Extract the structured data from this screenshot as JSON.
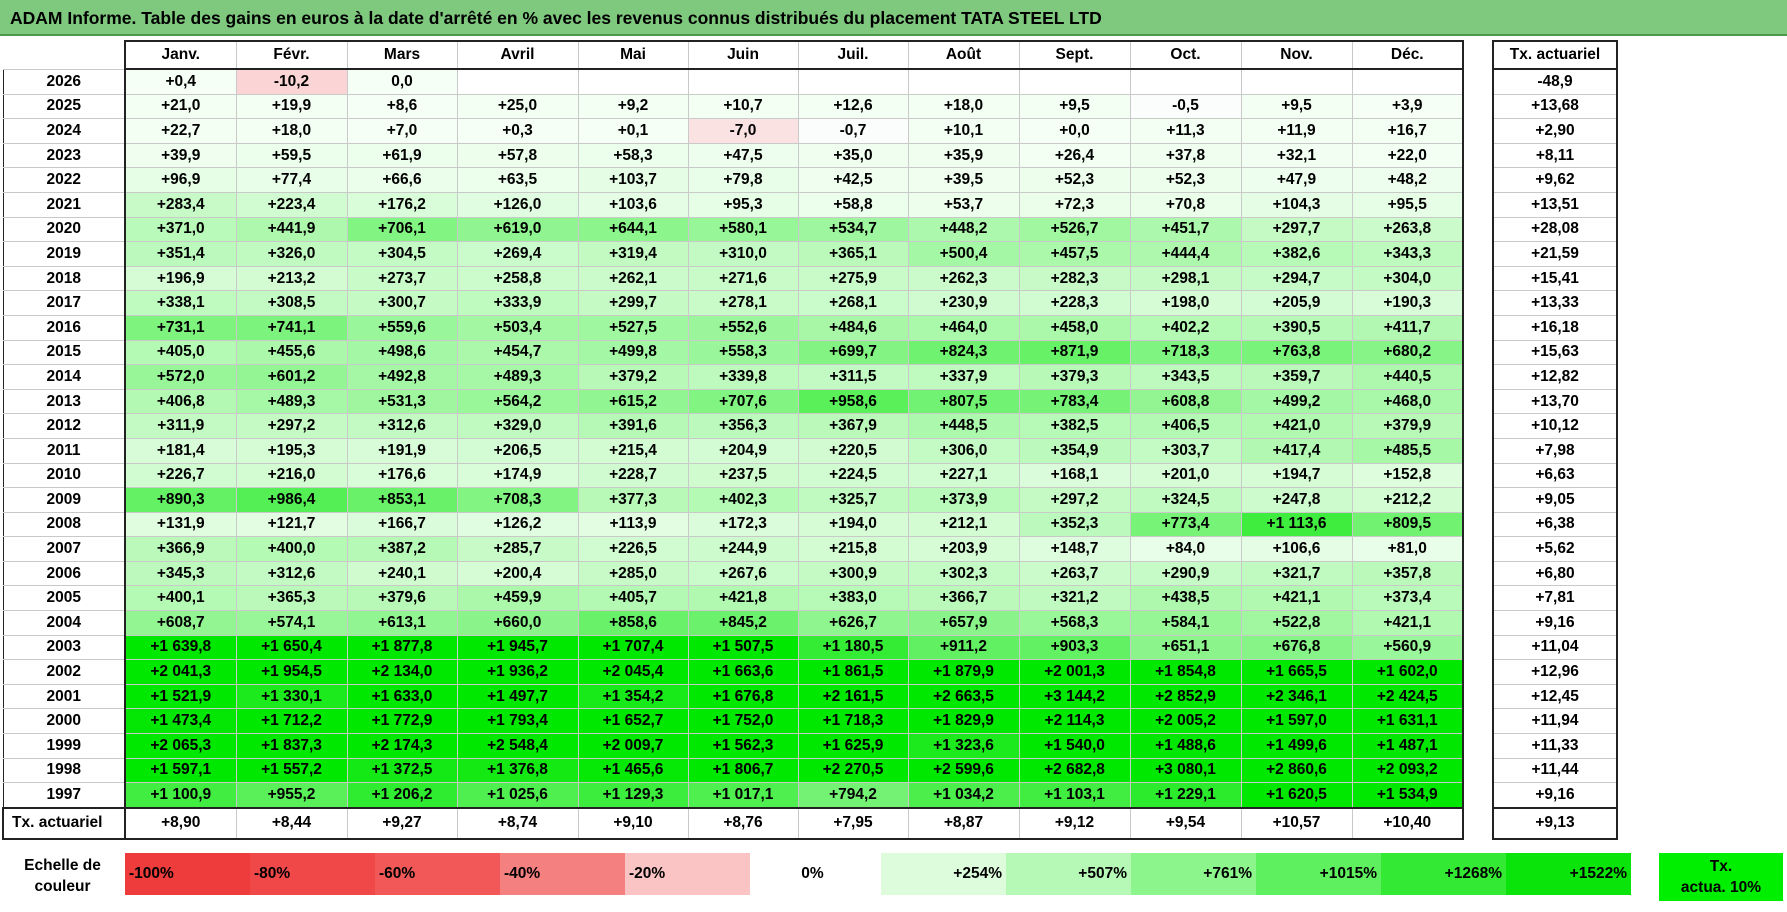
{
  "title": "ADAM Informe. Table des gains en euros à la date d'arrêté en % avec les revenus connus distribués du placement TATA STEEL LTD",
  "months": [
    "Janv.",
    "Févr.",
    "Mars",
    "Avril",
    "Mai",
    "Juin",
    "Juil.",
    "Août",
    "Sept.",
    "Oct.",
    "Nov.",
    "Déc."
  ],
  "tx_header": "Tx. actuariel",
  "rows": [
    {
      "year": "2026",
      "values": [
        "+0,4",
        "-10,2",
        "0,0",
        "",
        "",
        "",
        "",
        "",
        "",
        "",
        "",
        ""
      ],
      "tx": "-48,9"
    },
    {
      "year": "2025",
      "values": [
        "+21,0",
        "+19,9",
        "+8,6",
        "+25,0",
        "+9,2",
        "+10,7",
        "+12,6",
        "+18,0",
        "+9,5",
        "-0,5",
        "+9,5",
        "+3,9"
      ],
      "tx": "+13,68"
    },
    {
      "year": "2024",
      "values": [
        "+22,7",
        "+18,0",
        "+7,0",
        "+0,3",
        "+0,1",
        "-7,0",
        "-0,7",
        "+10,1",
        "+0,0",
        "+11,3",
        "+11,9",
        "+16,7"
      ],
      "tx": "+2,90"
    },
    {
      "year": "2023",
      "values": [
        "+39,9",
        "+59,5",
        "+61,9",
        "+57,8",
        "+58,3",
        "+47,5",
        "+35,0",
        "+35,9",
        "+26,4",
        "+37,8",
        "+32,1",
        "+22,0"
      ],
      "tx": "+8,11"
    },
    {
      "year": "2022",
      "values": [
        "+96,9",
        "+77,4",
        "+66,6",
        "+63,5",
        "+103,7",
        "+79,8",
        "+42,5",
        "+39,5",
        "+52,3",
        "+52,3",
        "+47,9",
        "+48,2"
      ],
      "tx": "+9,62"
    },
    {
      "year": "2021",
      "values": [
        "+283,4",
        "+223,4",
        "+176,2",
        "+126,0",
        "+103,6",
        "+95,3",
        "+58,8",
        "+53,7",
        "+72,3",
        "+70,8",
        "+104,3",
        "+95,5"
      ],
      "tx": "+13,51"
    },
    {
      "year": "2020",
      "values": [
        "+371,0",
        "+441,9",
        "+706,1",
        "+619,0",
        "+644,1",
        "+580,1",
        "+534,7",
        "+448,2",
        "+526,7",
        "+451,7",
        "+297,7",
        "+263,8"
      ],
      "tx": "+28,08"
    },
    {
      "year": "2019",
      "values": [
        "+351,4",
        "+326,0",
        "+304,5",
        "+269,4",
        "+319,4",
        "+310,0",
        "+365,1",
        "+500,4",
        "+457,5",
        "+444,4",
        "+382,6",
        "+343,3"
      ],
      "tx": "+21,59"
    },
    {
      "year": "2018",
      "values": [
        "+196,9",
        "+213,2",
        "+273,7",
        "+258,8",
        "+262,1",
        "+271,6",
        "+275,9",
        "+262,3",
        "+282,3",
        "+298,1",
        "+294,7",
        "+304,0"
      ],
      "tx": "+15,41"
    },
    {
      "year": "2017",
      "values": [
        "+338,1",
        "+308,5",
        "+300,7",
        "+333,9",
        "+299,7",
        "+278,1",
        "+268,1",
        "+230,9",
        "+228,3",
        "+198,0",
        "+205,9",
        "+190,3"
      ],
      "tx": "+13,33"
    },
    {
      "year": "2016",
      "values": [
        "+731,1",
        "+741,1",
        "+559,6",
        "+503,4",
        "+527,5",
        "+552,6",
        "+484,6",
        "+464,0",
        "+458,0",
        "+402,2",
        "+390,5",
        "+411,7"
      ],
      "tx": "+16,18"
    },
    {
      "year": "2015",
      "values": [
        "+405,0",
        "+455,6",
        "+498,6",
        "+454,7",
        "+499,8",
        "+558,3",
        "+699,7",
        "+824,3",
        "+871,9",
        "+718,3",
        "+763,8",
        "+680,2"
      ],
      "tx": "+15,63"
    },
    {
      "year": "2014",
      "values": [
        "+572,0",
        "+601,2",
        "+492,8",
        "+489,3",
        "+379,2",
        "+339,8",
        "+311,5",
        "+337,9",
        "+379,3",
        "+343,5",
        "+359,7",
        "+440,5"
      ],
      "tx": "+12,82"
    },
    {
      "year": "2013",
      "values": [
        "+406,8",
        "+489,3",
        "+531,3",
        "+564,2",
        "+615,2",
        "+707,6",
        "+958,6",
        "+807,5",
        "+783,4",
        "+608,8",
        "+499,2",
        "+468,0"
      ],
      "tx": "+13,70"
    },
    {
      "year": "2012",
      "values": [
        "+311,9",
        "+297,2",
        "+312,6",
        "+329,0",
        "+391,6",
        "+356,3",
        "+367,9",
        "+448,5",
        "+382,5",
        "+406,5",
        "+421,0",
        "+379,9"
      ],
      "tx": "+10,12"
    },
    {
      "year": "2011",
      "values": [
        "+181,4",
        "+195,3",
        "+191,9",
        "+206,5",
        "+215,4",
        "+204,9",
        "+220,5",
        "+306,0",
        "+354,9",
        "+303,7",
        "+417,4",
        "+485,5"
      ],
      "tx": "+7,98"
    },
    {
      "year": "2010",
      "values": [
        "+226,7",
        "+216,0",
        "+176,6",
        "+174,9",
        "+228,7",
        "+237,5",
        "+224,5",
        "+227,1",
        "+168,1",
        "+201,0",
        "+194,7",
        "+152,8"
      ],
      "tx": "+6,63"
    },
    {
      "year": "2009",
      "values": [
        "+890,3",
        "+986,4",
        "+853,1",
        "+708,3",
        "+377,3",
        "+402,3",
        "+325,7",
        "+373,9",
        "+297,2",
        "+324,5",
        "+247,8",
        "+212,2"
      ],
      "tx": "+9,05"
    },
    {
      "year": "2008",
      "values": [
        "+131,9",
        "+121,7",
        "+166,7",
        "+126,2",
        "+113,9",
        "+172,3",
        "+194,0",
        "+212,1",
        "+352,3",
        "+773,4",
        "+1 113,6",
        "+809,5"
      ],
      "tx": "+6,38"
    },
    {
      "year": "2007",
      "values": [
        "+366,9",
        "+400,0",
        "+387,2",
        "+285,7",
        "+226,5",
        "+244,9",
        "+215,8",
        "+203,9",
        "+148,7",
        "+84,0",
        "+106,6",
        "+81,0"
      ],
      "tx": "+5,62"
    },
    {
      "year": "2006",
      "values": [
        "+345,3",
        "+312,6",
        "+240,1",
        "+200,4",
        "+285,0",
        "+267,6",
        "+300,9",
        "+302,3",
        "+263,7",
        "+290,9",
        "+321,7",
        "+357,8"
      ],
      "tx": "+6,80"
    },
    {
      "year": "2005",
      "values": [
        "+400,1",
        "+365,3",
        "+379,6",
        "+459,9",
        "+405,7",
        "+421,8",
        "+383,0",
        "+366,7",
        "+321,2",
        "+438,5",
        "+421,1",
        "+373,4"
      ],
      "tx": "+7,81"
    },
    {
      "year": "2004",
      "values": [
        "+608,7",
        "+574,1",
        "+613,1",
        "+660,0",
        "+858,6",
        "+845,2",
        "+626,7",
        "+657,9",
        "+568,3",
        "+584,1",
        "+522,8",
        "+421,1"
      ],
      "tx": "+9,16"
    },
    {
      "year": "2003",
      "values": [
        "+1 639,8",
        "+1 650,4",
        "+1 877,8",
        "+1 945,7",
        "+1 707,4",
        "+1 507,5",
        "+1 180,5",
        "+911,2",
        "+903,3",
        "+651,1",
        "+676,8",
        "+560,9"
      ],
      "tx": "+11,04"
    },
    {
      "year": "2002",
      "values": [
        "+2 041,3",
        "+1 954,5",
        "+2 134,0",
        "+1 936,2",
        "+2 045,4",
        "+1 663,6",
        "+1 861,5",
        "+1 879,9",
        "+2 001,3",
        "+1 854,8",
        "+1 665,5",
        "+1 602,0"
      ],
      "tx": "+12,96"
    },
    {
      "year": "2001",
      "values": [
        "+1 521,9",
        "+1 330,1",
        "+1 633,0",
        "+1 497,7",
        "+1 354,2",
        "+1 676,8",
        "+2 161,5",
        "+2 663,5",
        "+3 144,2",
        "+2 852,9",
        "+2 346,1",
        "+2 424,5"
      ],
      "tx": "+12,45"
    },
    {
      "year": "2000",
      "values": [
        "+1 473,4",
        "+1 712,2",
        "+1 772,9",
        "+1 793,4",
        "+1 652,7",
        "+1 752,0",
        "+1 718,3",
        "+1 829,9",
        "+2 114,3",
        "+2 005,2",
        "+1 597,0",
        "+1 631,1"
      ],
      "tx": "+11,94"
    },
    {
      "year": "1999",
      "values": [
        "+2 065,3",
        "+1 837,3",
        "+2 174,3",
        "+2 548,4",
        "+2 009,7",
        "+1 562,3",
        "+1 625,9",
        "+1 323,6",
        "+1 540,0",
        "+1 488,6",
        "+1 499,6",
        "+1 487,1"
      ],
      "tx": "+11,33"
    },
    {
      "year": "1998",
      "values": [
        "+1 597,1",
        "+1 557,2",
        "+1 372,5",
        "+1 376,8",
        "+1 465,6",
        "+1 806,7",
        "+2 270,5",
        "+2 599,6",
        "+2 682,8",
        "+3 080,1",
        "+2 860,6",
        "+2 093,2"
      ],
      "tx": "+11,44"
    },
    {
      "year": "1997",
      "values": [
        "+1 100,9",
        "+955,2",
        "+1 206,2",
        "+1 025,6",
        "+1 129,3",
        "+1 017,1",
        "+794,2",
        "+1 034,2",
        "+1 103,1",
        "+1 229,1",
        "+1 620,5",
        "+1 534,9"
      ],
      "tx": "+9,16"
    }
  ],
  "footer": {
    "label": "Tx. actuariel",
    "values": [
      "+8,90",
      "+8,44",
      "+9,27",
      "+8,74",
      "+9,10",
      "+8,76",
      "+7,95",
      "+8,87",
      "+9,12",
      "+9,54",
      "+10,57",
      "+10,40"
    ],
    "tx": "+9,13"
  },
  "legend": {
    "label_line1": "Echelle de",
    "label_line2": "couleur",
    "swatches": [
      {
        "text": "-100%",
        "color": "#ee3b3b",
        "align": "left"
      },
      {
        "text": "-80%",
        "color": "#f04848",
        "align": "left"
      },
      {
        "text": "-60%",
        "color": "#f25858",
        "align": "left"
      },
      {
        "text": "-40%",
        "color": "#f58080",
        "align": "left"
      },
      {
        "text": "-20%",
        "color": "#fbc4c4",
        "align": "left"
      },
      {
        "text": "0%",
        "color": "#ffffff",
        "align": "center"
      },
      {
        "text": "+254%",
        "color": "#dcfcdc",
        "align": "right"
      },
      {
        "text": "+507%",
        "color": "#b6f8b6",
        "align": "right"
      },
      {
        "text": "+761%",
        "color": "#8cf58c",
        "align": "right"
      },
      {
        "text": "+1015%",
        "color": "#5ef05e",
        "align": "right"
      },
      {
        "text": "+1268%",
        "color": "#33e933",
        "align": "right"
      },
      {
        "text": "+1522%",
        "color": "#0be40b",
        "align": "right"
      }
    ],
    "tx_line1": "Tx.",
    "tx_line2": "actua. 10%",
    "tx_color": "#00ef00"
  },
  "colors": {
    "title_bg": "#7fc97f",
    "max_green": "#00dd00",
    "pale_green": "#f3fff3",
    "negative_red": "#fbd5d5"
  }
}
